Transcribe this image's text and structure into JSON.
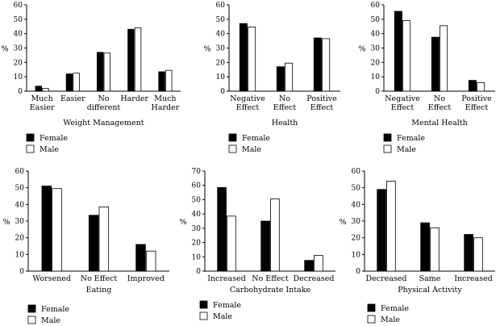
{
  "legend": {
    "female": "Female",
    "male": "Male"
  },
  "colors": {
    "female": "#000000",
    "male": "#ffffff",
    "axis": "#000000"
  },
  "chart_data": [
    {
      "type": "bar",
      "title": "Weight Management",
      "xlabel": "Weight Management",
      "ylabel": "%",
      "ylim": [
        0,
        60
      ],
      "yticks": [
        0,
        10,
        20,
        30,
        40,
        50,
        60
      ],
      "categories": [
        [
          "Much",
          "Easier"
        ],
        [
          "Easier"
        ],
        [
          "No",
          "different"
        ],
        [
          "Harder"
        ],
        [
          "Much",
          "Harder"
        ]
      ],
      "series": [
        {
          "name": "Female",
          "values": [
            3.5,
            12,
            27,
            43,
            13.5
          ]
        },
        {
          "name": "Male",
          "values": [
            2,
            12.5,
            26.5,
            44,
            14.5
          ]
        }
      ],
      "legend_position": "bottom-left"
    },
    {
      "type": "bar",
      "title": "Health",
      "xlabel": "Health",
      "ylabel": "%",
      "ylim": [
        0,
        60
      ],
      "yticks": [
        0,
        10,
        20,
        30,
        40,
        50,
        60
      ],
      "categories": [
        [
          "Negative",
          "Effect"
        ],
        [
          "No",
          "Effect"
        ],
        [
          "Positive",
          "Effect"
        ]
      ],
      "series": [
        {
          "name": "Female",
          "values": [
            47,
            17,
            37
          ]
        },
        {
          "name": "Male",
          "values": [
            44.5,
            19.5,
            36.5
          ]
        }
      ],
      "legend_position": "bottom-left"
    },
    {
      "type": "bar",
      "title": "Mental Health",
      "xlabel": "Mental Health",
      "ylabel": "%",
      "ylim": [
        0,
        60
      ],
      "yticks": [
        0,
        10,
        20,
        30,
        40,
        50,
        60
      ],
      "categories": [
        [
          "Negative",
          "Effect"
        ],
        [
          "No",
          "Effect"
        ],
        [
          "Positive",
          "Effect"
        ]
      ],
      "series": [
        {
          "name": "Female",
          "values": [
            55.5,
            37.5,
            7.5
          ]
        },
        {
          "name": "Male",
          "values": [
            49,
            45.5,
            6
          ]
        }
      ],
      "legend_position": "bottom-left"
    },
    {
      "type": "bar",
      "title": "Eating",
      "xlabel": "Eating",
      "ylabel": "%",
      "ylim": [
        0,
        60
      ],
      "yticks": [
        0,
        10,
        20,
        30,
        40,
        50,
        60
      ],
      "categories": [
        [
          "Worsened"
        ],
        [
          "No Effect"
        ],
        [
          "Improved"
        ]
      ],
      "series": [
        {
          "name": "Female",
          "values": [
            51,
            33.5,
            16
          ]
        },
        {
          "name": "Male",
          "values": [
            49.5,
            38.5,
            12
          ]
        }
      ],
      "legend_position": "bottom-left"
    },
    {
      "type": "bar",
      "title": "Carbohydrate Intake",
      "xlabel": "Carbohydrate Intake",
      "ylabel": "%",
      "ylim": [
        0,
        70
      ],
      "yticks": [
        0,
        10,
        20,
        30,
        40,
        50,
        60,
        70
      ],
      "categories": [
        [
          "Increased"
        ],
        [
          "No Effect"
        ],
        [
          "Decreased"
        ]
      ],
      "series": [
        {
          "name": "Female",
          "values": [
            58.5,
            35,
            7.5
          ]
        },
        {
          "name": "Male",
          "values": [
            38.5,
            50.5,
            11
          ]
        }
      ],
      "legend_position": "bottom-left"
    },
    {
      "type": "bar",
      "title": "Physical Activity",
      "xlabel": "Physical Activity",
      "ylabel": "%",
      "ylim": [
        0,
        60
      ],
      "yticks": [
        0,
        10,
        20,
        30,
        40,
        50,
        60
      ],
      "categories": [
        [
          "Decreased"
        ],
        [
          "Same"
        ],
        [
          "Increased"
        ]
      ],
      "series": [
        {
          "name": "Female",
          "values": [
            49,
            29,
            22
          ]
        },
        {
          "name": "Male",
          "values": [
            54,
            26,
            20
          ]
        }
      ],
      "legend_position": "bottom-left"
    }
  ]
}
